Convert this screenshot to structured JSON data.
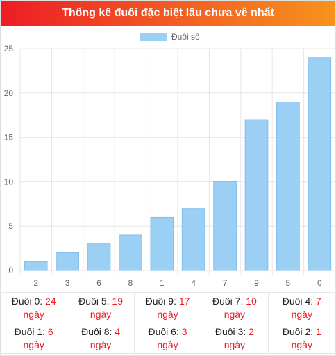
{
  "header": {
    "title": "Thống kê đuôi đặc biệt lâu chưa về nhất"
  },
  "colors": {
    "bar": "#9ccff4",
    "bar_border": "#7fbfee",
    "header_start": "#ed1c24",
    "header_end": "#f7931e",
    "value": "#ed1c24"
  },
  "chart_data": {
    "type": "bar",
    "categories": [
      "2",
      "3",
      "6",
      "8",
      "1",
      "4",
      "7",
      "9",
      "5",
      "0"
    ],
    "series": [
      {
        "name": "Đuôi số",
        "values": [
          1,
          2,
          3,
          4,
          6,
          7,
          10,
          17,
          19,
          24
        ]
      }
    ],
    "yticks": [
      "0",
      "5",
      "10",
      "15",
      "20",
      "25"
    ],
    "ylim": [
      0,
      25
    ],
    "grid": true,
    "legend": "top-center"
  },
  "table": {
    "unit": "ngày",
    "cells": [
      {
        "label": "Đuôi 0:",
        "value": "24"
      },
      {
        "label": "Đuôi 5:",
        "value": "19"
      },
      {
        "label": "Đuôi 9:",
        "value": "17"
      },
      {
        "label": "Đuôi 7:",
        "value": "10"
      },
      {
        "label": "Đuôi 4:",
        "value": "7"
      },
      {
        "label": "Đuôi 1:",
        "value": "6"
      },
      {
        "label": "Đuôi 8:",
        "value": "4"
      },
      {
        "label": "Đuôi 6:",
        "value": "3"
      },
      {
        "label": "Đuôi 3:",
        "value": "2"
      },
      {
        "label": "Đuôi 2:",
        "value": "1"
      }
    ]
  }
}
